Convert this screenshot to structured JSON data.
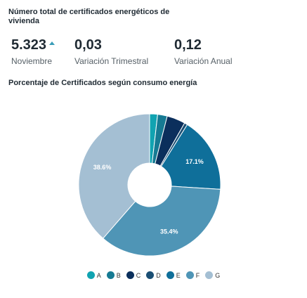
{
  "header": {
    "title": "Número total de certificados energéticos de vivienda"
  },
  "kpis": [
    {
      "value": "5.323",
      "label": "Noviembre",
      "trend": "up",
      "trend_color": "#3a9db8"
    },
    {
      "value": "0,03",
      "label": "Variación Trimestral"
    },
    {
      "value": "0,12",
      "label": "Variación Anual"
    }
  ],
  "chart_section": {
    "title": "Porcentaje de Certificados según consumo energía"
  },
  "chart_data": {
    "type": "pie",
    "title": "Porcentaje de Certificados según consumo energía",
    "donut": true,
    "categories": [
      "A",
      "B",
      "C",
      "D",
      "E",
      "F",
      "G"
    ],
    "values": [
      1.8,
      2.2,
      4.2,
      0.7,
      17.1,
      35.4,
      38.6
    ],
    "colors": [
      "#11a3b1",
      "#167a93",
      "#0b2f5c",
      "#1b4f74",
      "#0f6f9a",
      "#4f95b6",
      "#a4bfd3"
    ],
    "data_labels": {
      "E": "17.1%",
      "F": "35.4%",
      "G": "38.6%"
    },
    "legend": "bottom"
  }
}
